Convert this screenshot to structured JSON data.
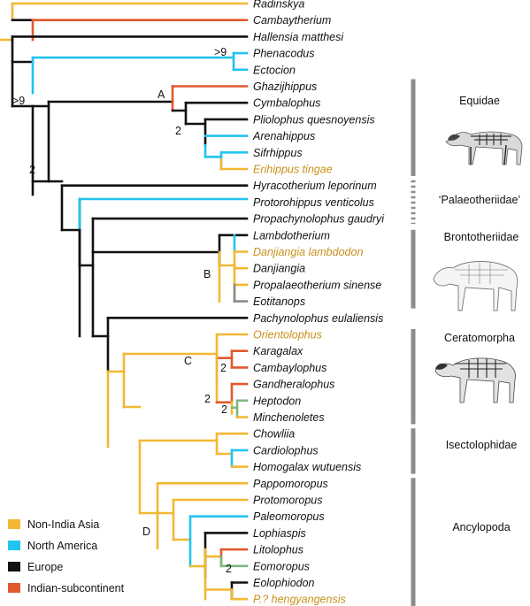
{
  "colors": {
    "non_india_asia": "#f2b833",
    "north_america": "#22c3ee",
    "europe": "#111111",
    "indian_subcontinent": "#e0592c",
    "mixed_green": "#7cb87e",
    "mixed_gray": "#8a8a8a",
    "highlight_text": "#c8901a",
    "bar": "#8c8c8c"
  },
  "taxa": [
    {
      "id": "radinskya",
      "label": "Radinskya",
      "highlight": false
    },
    {
      "id": "cambaytherium",
      "label": "Cambaytherium",
      "highlight": false
    },
    {
      "id": "hallensia",
      "label": "Hallensia matthesi",
      "highlight": false
    },
    {
      "id": "phenacodus",
      "label": "Phenacodus",
      "highlight": false
    },
    {
      "id": "ectocion",
      "label": "Ectocion",
      "highlight": false
    },
    {
      "id": "ghazijhippus",
      "label": "Ghazijhippus",
      "highlight": false
    },
    {
      "id": "cymbalophus",
      "label": "Cymbalophus",
      "highlight": false
    },
    {
      "id": "pliolophus",
      "label": "Pliolophus quesnoyensis",
      "highlight": false
    },
    {
      "id": "arenahippus",
      "label": "Arenahippus",
      "highlight": false
    },
    {
      "id": "sifrhippus",
      "label": "Sifrhippus",
      "highlight": false
    },
    {
      "id": "erihippus",
      "label": "Erihippus tingae",
      "highlight": true
    },
    {
      "id": "hyracotherium",
      "label": "Hyracotherium leporinum",
      "highlight": false
    },
    {
      "id": "protorohippus",
      "label": "Protorohippus venticolus",
      "highlight": false
    },
    {
      "id": "propachynolophus",
      "label": "Propachynolophus gaudryi",
      "highlight": false
    },
    {
      "id": "lambdotherium",
      "label": "Lambdotherium",
      "highlight": false
    },
    {
      "id": "danjiangia_l",
      "label": "Danjiangia lambdodon",
      "highlight": true
    },
    {
      "id": "danjiangia",
      "label": "Danjiangia",
      "highlight": false
    },
    {
      "id": "propalaeotherium",
      "label": "Propalaeotherium sinense",
      "highlight": false
    },
    {
      "id": "eotitanops",
      "label": "Eotitanops",
      "highlight": false
    },
    {
      "id": "pachynolophus",
      "label": "Pachynolophus eulaliensis",
      "highlight": false
    },
    {
      "id": "orientolophus",
      "label": "Orientolophus",
      "highlight": true
    },
    {
      "id": "karagalax",
      "label": "Karagalax",
      "highlight": false
    },
    {
      "id": "cambaylophus",
      "label": "Cambaylophus",
      "highlight": false
    },
    {
      "id": "gandheralophus",
      "label": "Gandheralophus",
      "highlight": false
    },
    {
      "id": "heptodon",
      "label": "Heptodon",
      "highlight": false
    },
    {
      "id": "minchenoletes",
      "label": "Minchenoletes",
      "highlight": false
    },
    {
      "id": "chowliia",
      "label": "Chowliia",
      "highlight": false
    },
    {
      "id": "cardiolophus",
      "label": "Cardiolophus",
      "highlight": false
    },
    {
      "id": "homogalax",
      "label": "Homogalax wutuensis",
      "highlight": false
    },
    {
      "id": "pappomoropus",
      "label": "Pappomoropus",
      "highlight": false
    },
    {
      "id": "protomoropus",
      "label": "Protomoropus",
      "highlight": false
    },
    {
      "id": "paleomoropus",
      "label": "Paleomoropus",
      "highlight": false
    },
    {
      "id": "lophiaspis",
      "label": "Lophiaspis",
      "highlight": false
    },
    {
      "id": "litolophus",
      "label": "Litolophus",
      "highlight": false
    },
    {
      "id": "eomoropus",
      "label": "Eomoropus",
      "highlight": false
    },
    {
      "id": "eolophiodon",
      "label": "Eolophiodon",
      "highlight": false
    },
    {
      "id": "p_hengyangensis",
      "label": "P.? hengyangensis",
      "highlight": true
    }
  ],
  "node_labels": [
    {
      "id": "node-gt9-phenacodus",
      "text": ">9"
    },
    {
      "id": "node-gt9-root",
      "text": ">9"
    },
    {
      "id": "node-2-perissodactyla",
      "text": "2"
    },
    {
      "id": "node-a",
      "text": "A"
    },
    {
      "id": "node-2-equidae",
      "text": "2"
    },
    {
      "id": "node-b",
      "text": "B"
    },
    {
      "id": "node-c",
      "text": "C"
    },
    {
      "id": "node-2-karagalax",
      "text": "2"
    },
    {
      "id": "node-2-gandheralophus",
      "text": "2"
    },
    {
      "id": "node-2-heptodon",
      "text": "2"
    },
    {
      "id": "node-d",
      "text": "D"
    },
    {
      "id": "node-2-litolophus",
      "text": "2"
    }
  ],
  "groups": [
    {
      "id": "equidae",
      "label": "Equidae",
      "silhouette": "horse-skeleton-icon"
    },
    {
      "id": "palaeotheriidae",
      "label": "‘Palaeotheriidae’",
      "silhouette": ""
    },
    {
      "id": "brontotheriidae",
      "label": "Brontotheriidae",
      "silhouette": "brontothere-skeleton-icon"
    },
    {
      "id": "ceratomorpha",
      "label": "Ceratomorpha",
      "silhouette": "rhino-skeleton-icon"
    },
    {
      "id": "isectolophidae",
      "label": "Isectolophidae",
      "silhouette": ""
    },
    {
      "id": "ancylopoda",
      "label": "Ancylopoda",
      "silhouette": ""
    }
  ],
  "legend": [
    {
      "label": "Non-India Asia",
      "color_key": "non_india_asia"
    },
    {
      "label": "North America",
      "color_key": "north_america"
    },
    {
      "label": "Europe",
      "color_key": "europe"
    },
    {
      "label": "Indian-subcontinent",
      "color_key": "indian_subcontinent"
    }
  ]
}
